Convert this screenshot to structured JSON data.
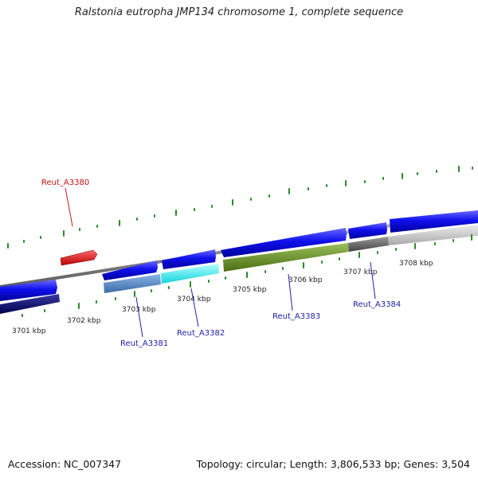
{
  "title": "Ralstonia eutropha JMP134 chromosome 1, complete sequence",
  "footer": {
    "accession": "Accession: NC_007347",
    "summary": "Topology: circular; Length: 3,806,533 bp; Genes: 3,504"
  },
  "colors": {
    "strand_bar": "#8a8a8a",
    "tick_green": "#2a8a2a",
    "label_red": "#cc1111",
    "label_blue": "#2222aa"
  },
  "map": {
    "ticks": [
      "3701 kbp",
      "3702 kbp",
      "3703 kbp",
      "3704 kbp",
      "3705 kbp",
      "3706 kbp",
      "3707 kbp",
      "3708 kbp"
    ],
    "gene_labels": [
      "Reut_A3380",
      "Reut_A3381",
      "Reut_A3382",
      "Reut_A3383",
      "Reut_A3384"
    ]
  }
}
